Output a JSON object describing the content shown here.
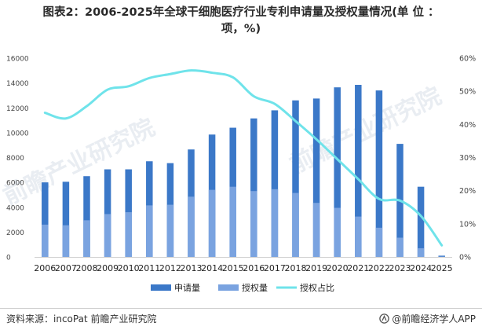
{
  "title_line1": "图表2：2006-2025年全球干细胞医疗行业专利申请量及授权量情况(单 位 ：",
  "title_line2": "项，%)",
  "source": "资料来源：incoPat 前瞻产业研究院",
  "brand": "@前瞻经济学人APP",
  "watermark": "前瞻产业研究院",
  "logo_icon": "qianzhan-logo-icon",
  "chart_data": {
    "type": "bar",
    "categories": [
      "2006",
      "2007",
      "2008",
      "2009",
      "2010",
      "2011",
      "2012",
      "2013",
      "2014",
      "2015",
      "2016",
      "2017",
      "2018",
      "2019",
      "2020",
      "2021",
      "2022",
      "2023",
      "2024",
      "2025"
    ],
    "series": [
      {
        "name": "申请量",
        "type": "bar",
        "axis": "left",
        "color": "#3b78c8",
        "values": [
          6000,
          6050,
          6500,
          7050,
          7050,
          7700,
          7550,
          8650,
          9850,
          10400,
          11150,
          11800,
          12600,
          12750,
          13650,
          13850,
          13400,
          9100,
          5650,
          100
        ]
      },
      {
        "name": "授权量",
        "type": "bar",
        "axis": "left",
        "color": "#7aa3e0",
        "values": [
          2600,
          2550,
          2950,
          3450,
          3600,
          4150,
          4200,
          4850,
          5400,
          5650,
          5300,
          5450,
          5150,
          4350,
          3950,
          3250,
          2350,
          1550,
          700,
          30
        ]
      },
      {
        "name": "授权占比",
        "type": "line",
        "axis": "right",
        "color": "#6fe3ea",
        "values": [
          43.5,
          41.8,
          45.5,
          50.5,
          51.5,
          54,
          55.2,
          56.3,
          55.6,
          54.2,
          48.5,
          46.2,
          41,
          35.5,
          29.5,
          23.5,
          17.5,
          17,
          12.4,
          3.5
        ]
      }
    ],
    "y_left": {
      "min": 0,
      "max": 16000,
      "ticks": [
        0,
        2000,
        4000,
        6000,
        8000,
        10000,
        12000,
        14000,
        16000
      ]
    },
    "y_right": {
      "min": 0,
      "max": 60,
      "ticks": [
        "0%",
        "10%",
        "20%",
        "30%",
        "40%",
        "50%",
        "60%"
      ]
    },
    "grid": false,
    "legend_position": "bottom-center"
  }
}
